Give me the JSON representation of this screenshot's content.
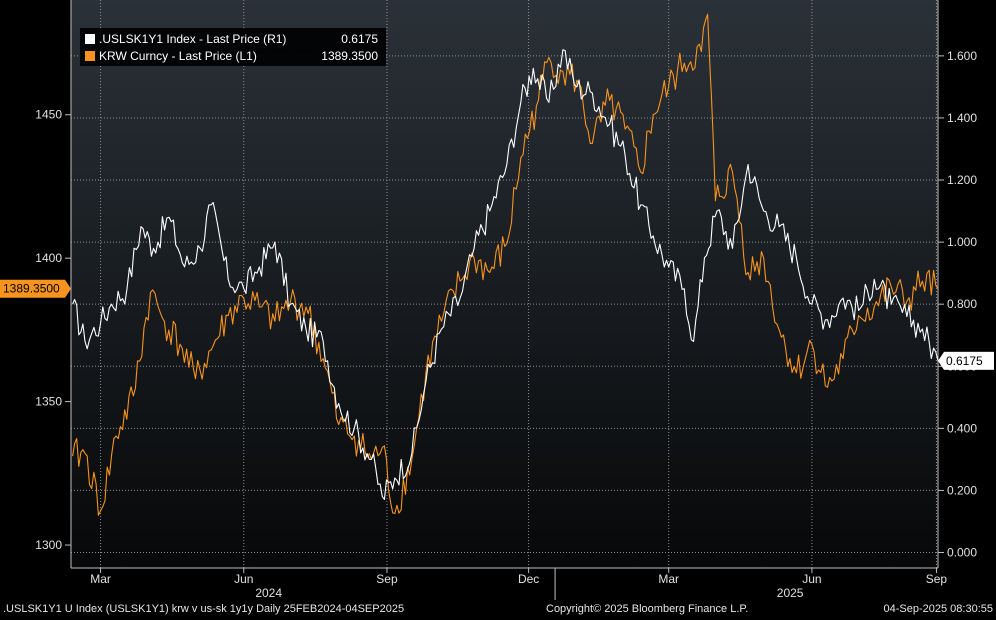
{
  "chart_data": {
    "type": "line",
    "x_range": [
      "2024-02-25",
      "2025-09-04"
    ],
    "x_ticks": [
      {
        "label": "Mar",
        "date": "2024-03-15"
      },
      {
        "label": "Jun",
        "date": "2024-06-15"
      },
      {
        "label": "Sep",
        "date": "2024-09-15"
      },
      {
        "label": "Dec",
        "date": "2024-12-15"
      },
      {
        "label": "Mar",
        "date": "2025-03-15"
      },
      {
        "label": "Jun",
        "date": "2025-06-15"
      },
      {
        "label": "Sep",
        "date": "2025-09-03"
      }
    ],
    "x_year_labels": [
      {
        "label": "2024",
        "date": "2024-07-01"
      },
      {
        "label": "2025",
        "date": "2025-06-01"
      }
    ],
    "left_axis": {
      "range": [
        1292,
        1490
      ],
      "ticks": [
        1300,
        1350,
        1400,
        1450
      ],
      "current_label": "1389.3500",
      "current_value": 1389.35,
      "current_color": "#f7931e"
    },
    "right_axis": {
      "range": [
        -0.05,
        1.78
      ],
      "ticks": [
        "0.000",
        "0.200",
        "0.400",
        "0.600",
        "0.800",
        "1.000",
        "1.200",
        "1.400",
        "1.600"
      ],
      "current_label": "0.6175",
      "current_value": 0.6175
    },
    "legend": [
      {
        "name": ".USLSK1Y1 Index - Last Price (R1)",
        "value": "0.6175",
        "color": "#ffffff"
      },
      {
        "name": "KRW Curncy - Last Price (L1)",
        "value": "1389.3500",
        "color": "#f7931e"
      }
    ],
    "series": [
      {
        "name": ".USLSK1Y1 Index - Last Price (R1)",
        "axis": "right",
        "color": "#ffffff",
        "points": [
          [
            "2024-02-26",
            0.8
          ],
          [
            "2024-03-05",
            0.68
          ],
          [
            "2024-03-15",
            0.74
          ],
          [
            "2024-03-22",
            0.8
          ],
          [
            "2024-04-01",
            0.85
          ],
          [
            "2024-04-10",
            1.05
          ],
          [
            "2024-04-18",
            0.98
          ],
          [
            "2024-04-28",
            1.08
          ],
          [
            "2024-05-08",
            0.92
          ],
          [
            "2024-05-18",
            0.98
          ],
          [
            "2024-05-25",
            1.12
          ],
          [
            "2024-06-05",
            0.88
          ],
          [
            "2024-06-15",
            0.85
          ],
          [
            "2024-06-25",
            0.92
          ],
          [
            "2024-07-05",
            1.0
          ],
          [
            "2024-07-15",
            0.8
          ],
          [
            "2024-07-25",
            0.72
          ],
          [
            "2024-08-05",
            0.68
          ],
          [
            "2024-08-15",
            0.48
          ],
          [
            "2024-08-25",
            0.4
          ],
          [
            "2024-09-05",
            0.3
          ],
          [
            "2024-09-12",
            0.18
          ],
          [
            "2024-09-20",
            0.24
          ],
          [
            "2024-10-01",
            0.32
          ],
          [
            "2024-10-10",
            0.55
          ],
          [
            "2024-10-20",
            0.72
          ],
          [
            "2024-11-01",
            0.82
          ],
          [
            "2024-11-10",
            0.98
          ],
          [
            "2024-11-20",
            1.1
          ],
          [
            "2024-12-01",
            1.25
          ],
          [
            "2024-12-10",
            1.45
          ],
          [
            "2024-12-18",
            1.56
          ],
          [
            "2024-12-28",
            1.45
          ],
          [
            "2025-01-06",
            1.62
          ],
          [
            "2025-01-15",
            1.5
          ],
          [
            "2025-01-25",
            1.48
          ],
          [
            "2025-02-05",
            1.38
          ],
          [
            "2025-02-15",
            1.28
          ],
          [
            "2025-02-25",
            1.12
          ],
          [
            "2025-03-05",
            1.02
          ],
          [
            "2025-03-15",
            0.92
          ],
          [
            "2025-03-25",
            0.85
          ],
          [
            "2025-03-31",
            0.68
          ],
          [
            "2025-04-07",
            0.95
          ],
          [
            "2025-04-15",
            1.1
          ],
          [
            "2025-04-25",
            0.98
          ],
          [
            "2025-05-05",
            1.25
          ],
          [
            "2025-05-15",
            1.1
          ],
          [
            "2025-05-25",
            1.05
          ],
          [
            "2025-06-05",
            0.95
          ],
          [
            "2025-06-15",
            0.8
          ],
          [
            "2025-06-25",
            0.75
          ],
          [
            "2025-07-05",
            0.82
          ],
          [
            "2025-07-15",
            0.78
          ],
          [
            "2025-07-25",
            0.88
          ],
          [
            "2025-08-05",
            0.8
          ],
          [
            "2025-08-15",
            0.76
          ],
          [
            "2025-08-25",
            0.72
          ],
          [
            "2025-09-04",
            0.6175
          ]
        ]
      },
      {
        "name": "KRW Curncy - Last Price (L1)",
        "axis": "left",
        "color": "#f7931e",
        "points": [
          [
            "2024-02-26",
            1331
          ],
          [
            "2024-03-05",
            1332
          ],
          [
            "2024-03-15",
            1312
          ],
          [
            "2024-03-25",
            1338
          ],
          [
            "2024-04-05",
            1352
          ],
          [
            "2024-04-16",
            1388
          ],
          [
            "2024-04-25",
            1378
          ],
          [
            "2024-05-05",
            1370
          ],
          [
            "2024-05-15",
            1358
          ],
          [
            "2024-05-25",
            1368
          ],
          [
            "2024-06-05",
            1380
          ],
          [
            "2024-06-15",
            1386
          ],
          [
            "2024-06-25",
            1383
          ],
          [
            "2024-07-05",
            1378
          ],
          [
            "2024-07-15",
            1385
          ],
          [
            "2024-07-25",
            1383
          ],
          [
            "2024-08-05",
            1365
          ],
          [
            "2024-08-15",
            1342
          ],
          [
            "2024-08-25",
            1338
          ],
          [
            "2024-09-05",
            1330
          ],
          [
            "2024-09-12",
            1334
          ],
          [
            "2024-09-20",
            1311
          ],
          [
            "2024-10-01",
            1330
          ],
          [
            "2024-10-10",
            1360
          ],
          [
            "2024-10-20",
            1378
          ],
          [
            "2024-11-01",
            1392
          ],
          [
            "2024-11-10",
            1400
          ],
          [
            "2024-11-20",
            1395
          ],
          [
            "2024-12-01",
            1405
          ],
          [
            "2024-12-10",
            1435
          ],
          [
            "2024-12-20",
            1453
          ],
          [
            "2024-12-28",
            1470
          ],
          [
            "2025-01-06",
            1465
          ],
          [
            "2025-01-15",
            1462
          ],
          [
            "2025-01-25",
            1440
          ],
          [
            "2025-02-05",
            1455
          ],
          [
            "2025-02-15",
            1445
          ],
          [
            "2025-02-25",
            1430
          ],
          [
            "2025-03-05",
            1450
          ],
          [
            "2025-03-15",
            1460
          ],
          [
            "2025-03-25",
            1468
          ],
          [
            "2025-04-05",
            1472
          ],
          [
            "2025-04-09",
            1485
          ],
          [
            "2025-04-14",
            1420
          ],
          [
            "2025-04-25",
            1430
          ],
          [
            "2025-05-05",
            1395
          ],
          [
            "2025-05-15",
            1400
          ],
          [
            "2025-05-25",
            1375
          ],
          [
            "2025-06-05",
            1360
          ],
          [
            "2025-06-15",
            1370
          ],
          [
            "2025-06-25",
            1355
          ],
          [
            "2025-07-05",
            1365
          ],
          [
            "2025-07-15",
            1380
          ],
          [
            "2025-07-25",
            1383
          ],
          [
            "2025-08-05",
            1390
          ],
          [
            "2025-08-15",
            1385
          ],
          [
            "2025-08-25",
            1392
          ],
          [
            "2025-09-04",
            1389.35
          ]
        ]
      }
    ],
    "grid": true,
    "legend_position": "top-left"
  },
  "footer": {
    "left": ".USLSK1Y1 U Index (USLSK1Y1) krw v us-sk 1y1y  Daily 25FEB2024-04SEP2025",
    "center": "Copyright© 2025 Bloomberg Finance L.P.",
    "right": "04-Sep-2025 08:30:55"
  }
}
